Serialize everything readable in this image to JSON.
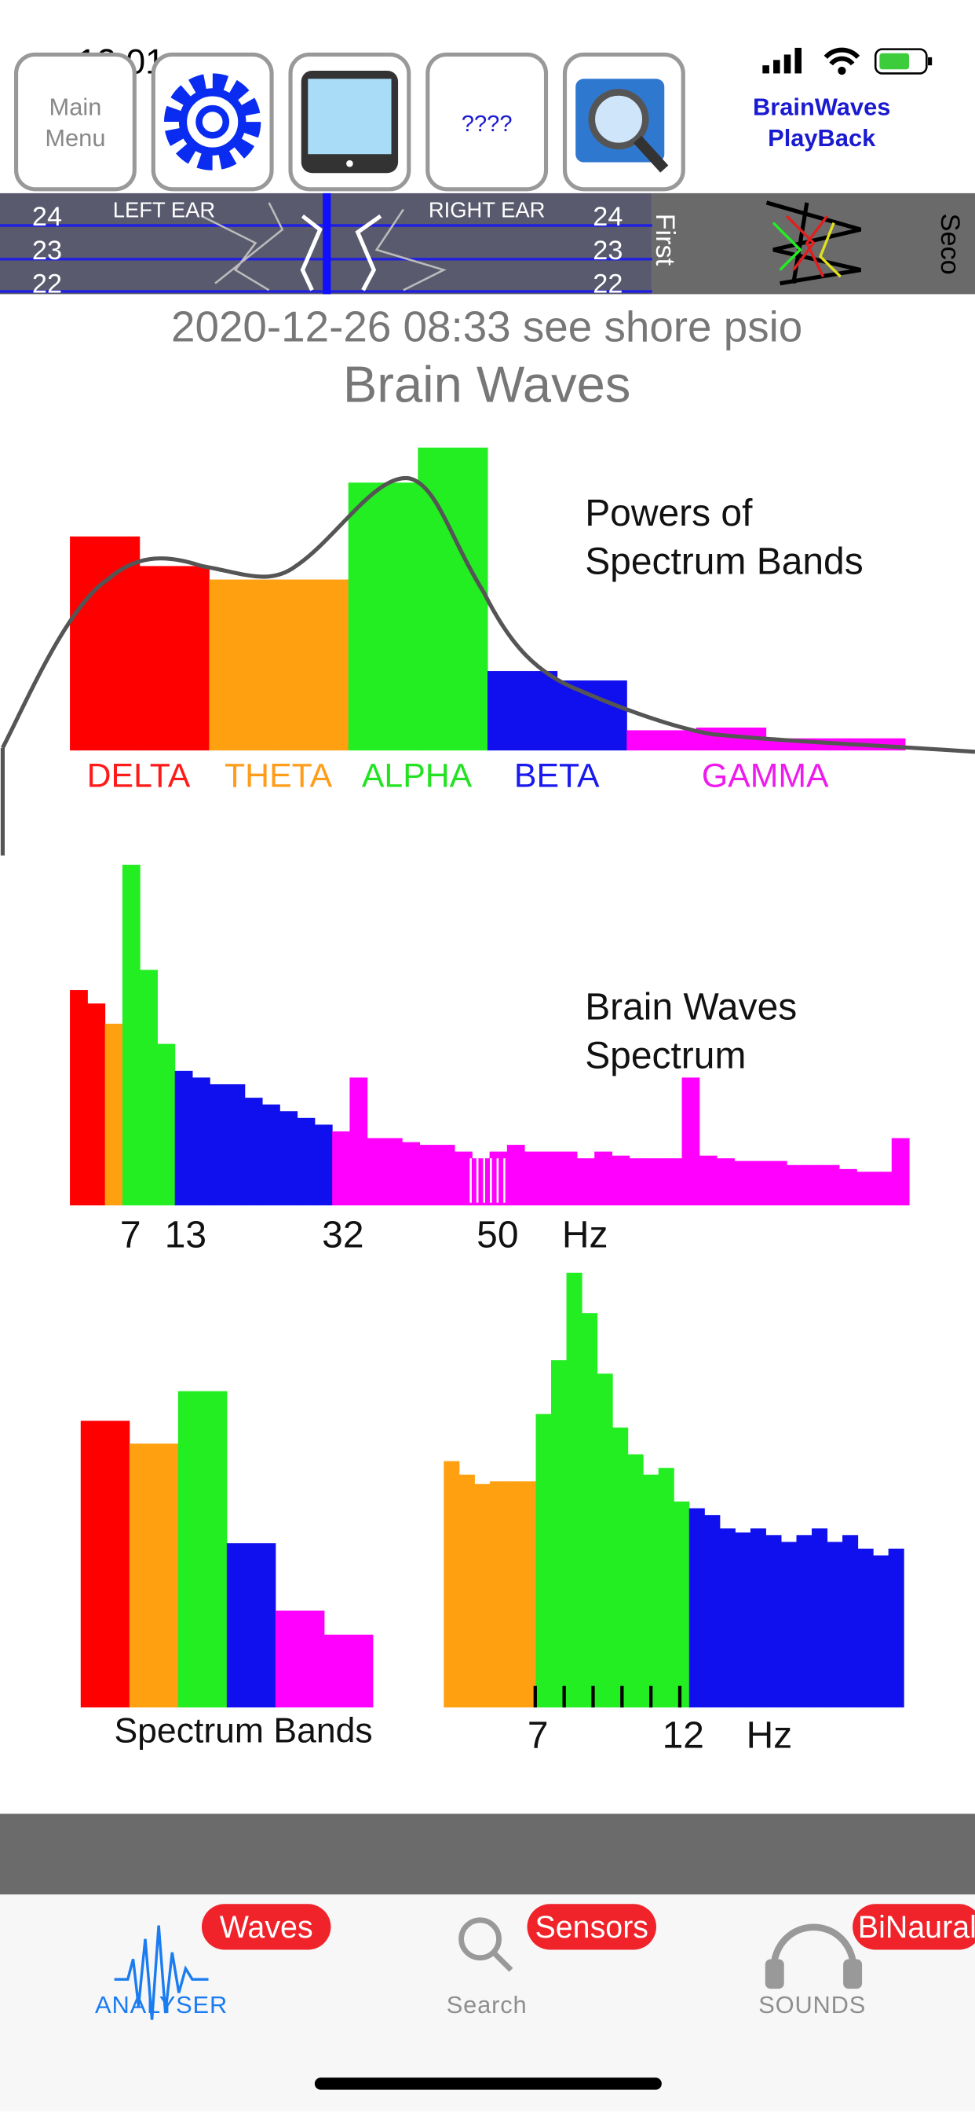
{
  "status_bar": {
    "time": "12:01"
  },
  "toolbar": {
    "main_menu": [
      "Main",
      "Menu"
    ],
    "unknown": "????",
    "playback": [
      "BrainWaves",
      "PlayBack"
    ]
  },
  "ear_strip": {
    "left_ticks": [
      "24",
      "23",
      "22"
    ],
    "right_ticks": [
      "24",
      "23",
      "22"
    ],
    "left_label": "LEFT EAR",
    "right_label": "RIGHT EAR",
    "first": "First",
    "second": "Seco"
  },
  "header": {
    "title": "2020-12-26 08:33 see shore psio",
    "subtitle": "Brain Waves"
  },
  "charts": [
    {
      "type": "bar",
      "title": [
        "Powers of",
        "Spectrum Bands"
      ],
      "band_labels": [
        {
          "text": "DELTA",
          "color": "#ff1a1a"
        },
        {
          "text": "THETA",
          "color": "#ff9c1a"
        },
        {
          "text": "ALPHA",
          "color": "#22e222"
        },
        {
          "text": "BETA",
          "color": "#1a1aee"
        },
        {
          "text": "GAMMA",
          "color": "#ee1aee"
        }
      ],
      "values": [
        159,
        137,
        127,
        127,
        199,
        225,
        59,
        52,
        15,
        17,
        9,
        9
      ],
      "colors": [
        "#ff0000",
        "#ff0000",
        "#ffa010",
        "#ffa010",
        "#22ee22",
        "#22ee22",
        "#1010ee",
        "#1010ee",
        "#ff00ff",
        "#ff00ff",
        "#ff00ff",
        "#ff00ff"
      ]
    },
    {
      "type": "bar",
      "title": [
        "Brain Waves",
        "Spectrum"
      ],
      "xlabels": [
        "7",
        "13",
        "32",
        "50",
        "Hz"
      ],
      "values": [
        160,
        150,
        135,
        253,
        175,
        120,
        100,
        95,
        90,
        90,
        80,
        75,
        70,
        65,
        60,
        55,
        95,
        50,
        50,
        47,
        45,
        45,
        40,
        35,
        40,
        45,
        40,
        40,
        40,
        35,
        40,
        37,
        35,
        35,
        35,
        95,
        37,
        35,
        33,
        33,
        33,
        30,
        30,
        30,
        27,
        25,
        25,
        50
      ],
      "colors": [
        "#ff0000",
        "#ff0000",
        "#ffa010",
        "#22ee22",
        "#22ee22",
        "#22ee22",
        "#1010ee",
        "#1010ee",
        "#1010ee",
        "#1010ee",
        "#1010ee",
        "#1010ee",
        "#1010ee",
        "#1010ee",
        "#1010ee",
        "#ff00ff",
        "#ff00ff",
        "#ff00ff",
        "#ff00ff",
        "#ff00ff",
        "#ff00ff",
        "#ff00ff",
        "#ff00ff",
        "#ff00ff",
        "#ff00ff",
        "#ff00ff",
        "#ff00ff",
        "#ff00ff",
        "#ff00ff",
        "#ff00ff",
        "#ff00ff",
        "#ff00ff",
        "#ff00ff",
        "#ff00ff",
        "#ff00ff",
        "#ff00ff",
        "#ff00ff",
        "#ff00ff",
        "#ff00ff",
        "#ff00ff",
        "#ff00ff",
        "#ff00ff",
        "#ff00ff",
        "#ff00ff",
        "#ff00ff",
        "#ff00ff",
        "#ff00ff",
        "#ff00ff"
      ]
    },
    {
      "type": "bar",
      "title": "Spectrum Bands",
      "values": [
        213,
        196,
        235,
        122,
        72,
        54
      ],
      "colors": [
        "#ff0000",
        "#ffa010",
        "#22ee22",
        "#1010ee",
        "#ff00ff",
        "#ff00ff"
      ]
    },
    {
      "type": "bar",
      "xlabels": [
        "7",
        "12",
        "Hz"
      ],
      "values": [
        183,
        173,
        166,
        168,
        168,
        168,
        218,
        258,
        323,
        293,
        248,
        208,
        188,
        173,
        178,
        153,
        148,
        143,
        133,
        130,
        133,
        128,
        123,
        128,
        133,
        123,
        128,
        118,
        113,
        118
      ],
      "colors": [
        "#ffa010",
        "#ffa010",
        "#ffa010",
        "#ffa010",
        "#ffa010",
        "#ffa010",
        "#22ee22",
        "#22ee22",
        "#22ee22",
        "#22ee22",
        "#22ee22",
        "#22ee22",
        "#22ee22",
        "#22ee22",
        "#22ee22",
        "#22ee22",
        "#1010ee",
        "#1010ee",
        "#1010ee",
        "#1010ee",
        "#1010ee",
        "#1010ee",
        "#1010ee",
        "#1010ee",
        "#1010ee",
        "#1010ee",
        "#1010ee",
        "#1010ee",
        "#1010ee",
        "#1010ee"
      ]
    }
  ],
  "tabs": [
    {
      "badge": "Waves",
      "label": "ANALYSER"
    },
    {
      "badge": "Sensors",
      "label": "Search"
    },
    {
      "badge": "BiNaural",
      "label": "SOUNDS"
    }
  ]
}
